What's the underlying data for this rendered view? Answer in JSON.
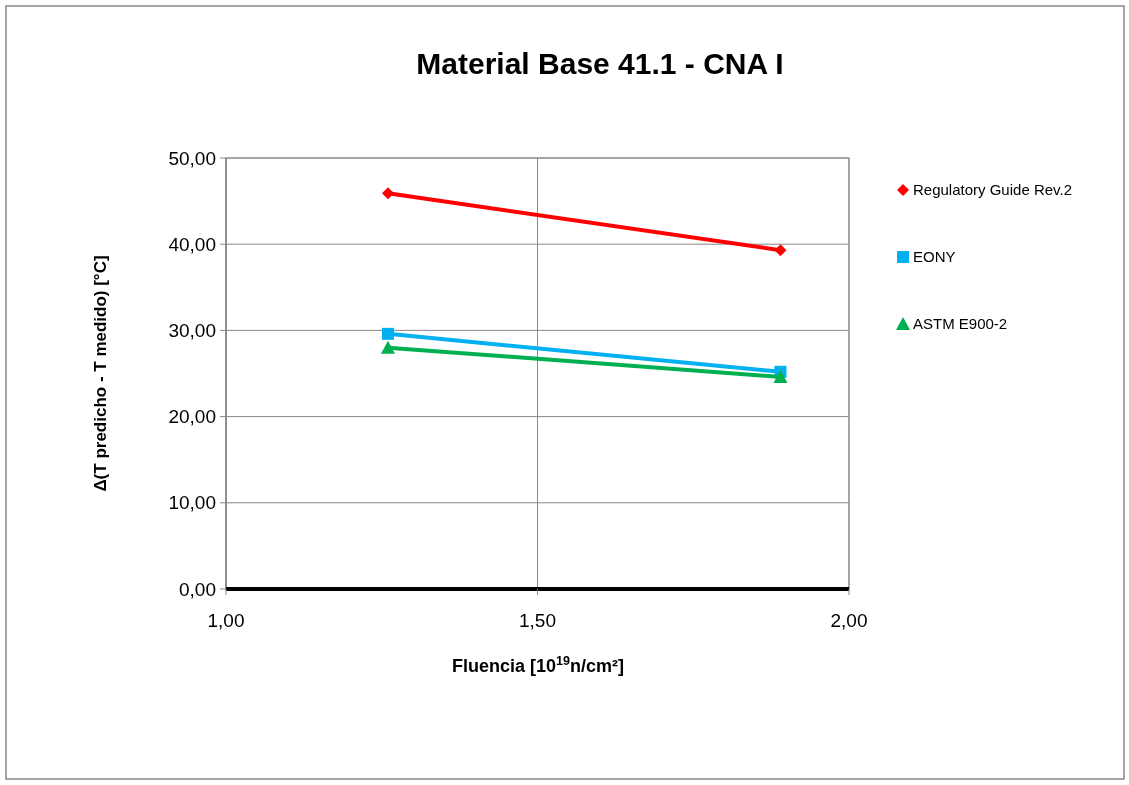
{
  "chart_data": {
    "type": "line",
    "title": "Material Base 41.1 - CNA I",
    "xlabel": "Fluencia [10$^{19}$n/cm²]",
    "ylabel": "Δ(T predicho - T medido) [°C]",
    "x": [
      1.26,
      1.89
    ],
    "series": [
      {
        "name": "Regulatory Guide Rev.2",
        "color": "#ff0000",
        "values": [
          45.9,
          39.3
        ],
        "marker": "diamond"
      },
      {
        "name": "EONY",
        "color": "#00b0f0",
        "values": [
          29.6,
          25.2
        ],
        "marker": "square"
      },
      {
        "name": "ASTM E900-2",
        "color": "#00b050",
        "values": [
          28.0,
          24.6
        ],
        "marker": "triangle"
      }
    ],
    "xlim": [
      1,
      2
    ],
    "xticks": [
      {
        "value": 1,
        "label": "1,00"
      },
      {
        "value": 1.5,
        "label": "1,50"
      },
      {
        "value": 2,
        "label": "2,00"
      }
    ],
    "ylim": [
      0,
      50
    ],
    "yticks": [
      {
        "value": 0,
        "label": "0,00"
      },
      {
        "value": 10,
        "label": "10,00"
      },
      {
        "value": 20,
        "label": "20,00"
      },
      {
        "value": 30,
        "label": "30,00"
      },
      {
        "value": 40,
        "label": "40,00"
      },
      {
        "value": 50,
        "label": "50,00"
      }
    ],
    "grid": true,
    "legend": "right",
    "line_style": "solid"
  }
}
